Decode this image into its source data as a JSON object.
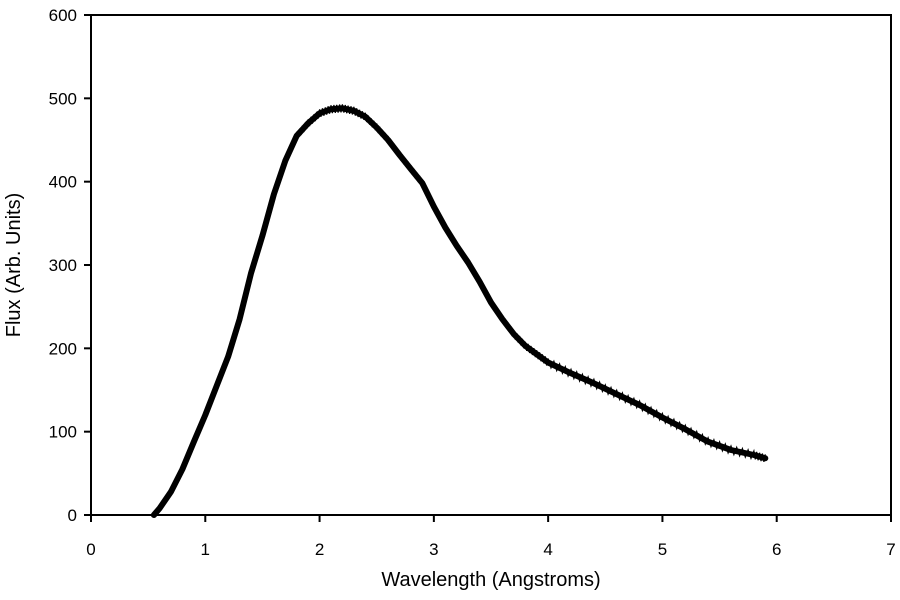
{
  "chart_data": {
    "type": "line",
    "title": "",
    "xlabel": "Wavelength (Angstroms)",
    "ylabel": "Flux (Arb. Units)",
    "xlim": [
      0,
      7
    ],
    "ylim": [
      0,
      600
    ],
    "xticks": [
      0,
      1,
      2,
      3,
      4,
      5,
      6,
      7
    ],
    "yticks": [
      0,
      100,
      200,
      300,
      400,
      500,
      600
    ],
    "grid": false,
    "legend": "none",
    "series": [
      {
        "color": "#000000",
        "x": [
          0.55,
          0.6,
          0.7,
          0.8,
          0.9,
          1.0,
          1.1,
          1.2,
          1.3,
          1.4,
          1.5,
          1.6,
          1.7,
          1.8,
          1.9,
          2.0,
          2.1,
          2.2,
          2.3,
          2.4,
          2.5,
          2.6,
          2.7,
          2.8,
          2.9,
          3.0,
          3.1,
          3.2,
          3.3,
          3.4,
          3.5,
          3.6,
          3.7,
          3.8,
          3.9,
          4.0,
          4.2,
          4.4,
          4.6,
          4.8,
          5.0,
          5.2,
          5.4,
          5.6,
          5.8,
          5.9
        ],
        "y": [
          0,
          8,
          28,
          55,
          88,
          120,
          155,
          190,
          235,
          290,
          335,
          385,
          425,
          455,
          470,
          482,
          487,
          488,
          485,
          478,
          465,
          450,
          432,
          415,
          398,
          370,
          345,
          323,
          303,
          280,
          255,
          235,
          217,
          203,
          193,
          183,
          170,
          158,
          145,
          132,
          117,
          103,
          88,
          78,
          72,
          68
        ]
      }
    ]
  }
}
